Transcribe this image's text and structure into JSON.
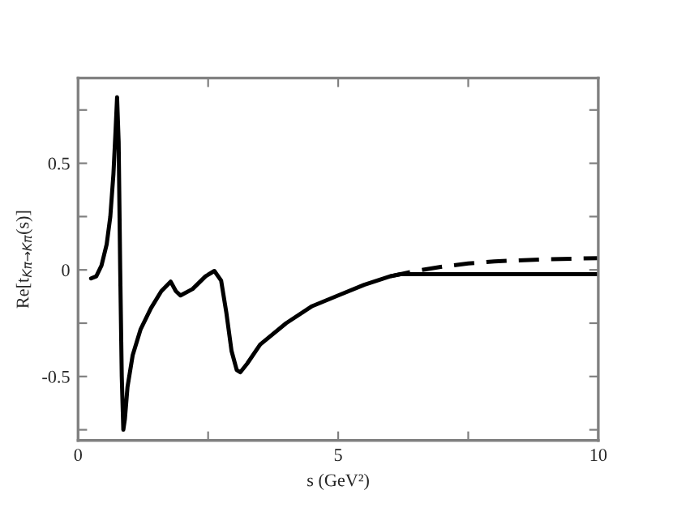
{
  "chart_data": {
    "type": "line",
    "xlabel": "s (GeV²)",
    "ylabel": "Re[t$_{Kπ→Kπ}$(s)]",
    "xlim": [
      0,
      10
    ],
    "ylim": [
      -0.8,
      0.9
    ],
    "xticks": [
      0,
      {
        "value": 2.5,
        "label": null
      },
      5,
      {
        "value": 7.5,
        "label": null
      },
      10
    ],
    "yticks": [
      {
        "value": -0.75,
        "label": null
      },
      -0.5,
      {
        "value": -0.25,
        "label": null
      },
      0,
      {
        "value": 0.25,
        "label": null
      },
      0.5,
      {
        "value": 0.75,
        "label": null
      }
    ],
    "grid": false,
    "legend": false,
    "series": [
      {
        "color": "#000000",
        "line_style": "solid",
        "x": [
          0.25,
          0.35,
          0.45,
          0.55,
          0.62,
          0.68,
          0.72,
          0.75,
          0.78,
          0.81,
          0.84,
          0.87,
          0.9,
          0.95,
          1.05,
          1.2,
          1.4,
          1.6,
          1.78,
          1.88,
          1.97,
          2.2,
          2.45,
          2.62,
          2.75,
          2.85,
          2.95,
          3.05,
          3.12,
          3.25,
          3.5,
          4.0,
          4.5,
          5.0,
          5.5,
          6.0,
          6.2,
          7,
          8,
          9,
          10
        ],
        "values": [
          -0.04,
          -0.03,
          0.02,
          0.12,
          0.25,
          0.45,
          0.65,
          0.81,
          0.6,
          0.0,
          -0.5,
          -0.75,
          -0.7,
          -0.55,
          -0.4,
          -0.28,
          -0.18,
          -0.1,
          -0.055,
          -0.1,
          -0.12,
          -0.09,
          -0.03,
          -0.005,
          -0.05,
          -0.2,
          -0.38,
          -0.47,
          -0.48,
          -0.44,
          -0.35,
          -0.25,
          -0.17,
          -0.12,
          -0.07,
          -0.03,
          -0.02,
          -0.02,
          -0.02,
          -0.02,
          -0.02
        ]
      },
      {
        "color": "#000000",
        "line_style": "dashed",
        "x": [
          6.0,
          6.5,
          7,
          7.5,
          8,
          9,
          10
        ],
        "values": [
          -0.03,
          -0.005,
          0.015,
          0.03,
          0.04,
          0.05,
          0.055
        ]
      }
    ]
  }
}
